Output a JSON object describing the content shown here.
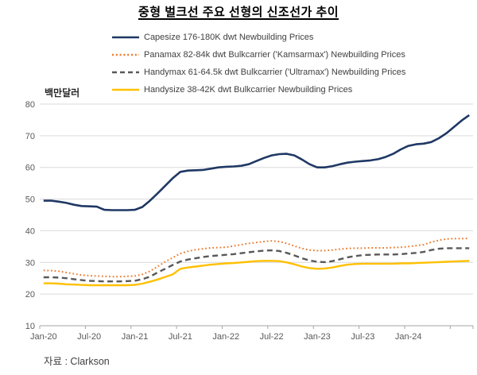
{
  "title": "중형 벌크선 주요 선형의 신조선가 추이",
  "axis_unit_label": "백만달러",
  "source_label": "자료 : Clarkson",
  "colors": {
    "capesize_navy": "#1F3864",
    "panamax_orange": "#ED7D31",
    "handymax_gray": "#595959",
    "handysize_yellow": "#FFC000",
    "gridline": "#D9D9D9",
    "axis_line": "#A6A6A6",
    "tick_label": "#595959",
    "legend_text": "#404040",
    "title_text": "#000000"
  },
  "chart_data": {
    "type": "line",
    "title": "중형 벌크선 주요 선형의 신조선가 추이",
    "xlabel": "",
    "ylabel": "백만달러",
    "ylim": [
      10,
      80
    ],
    "y_ticks": [
      10,
      20,
      30,
      40,
      50,
      60,
      70,
      80
    ],
    "grid": true,
    "legend_position": "top-left",
    "x_unit": "month",
    "x_start": "Jan-20",
    "x_end": "Sep-24",
    "n_points": 57,
    "x_tick_labels": [
      "Jan-20",
      "Jul-20",
      "Jan-21",
      "Jul-21",
      "Jan-22",
      "Jul-22",
      "Jan-23",
      "Jul-23",
      "Jan-24"
    ],
    "x_tick_month_indices": [
      0,
      6,
      12,
      18,
      24,
      30,
      36,
      42,
      48
    ],
    "series": [
      {
        "id": "capesize",
        "name": "Capesize 176-180K dwt Newbuilding Prices",
        "color": "#1F3864",
        "style": "solid",
        "line_width": 2.6,
        "values": [
          49.5,
          49.5,
          49.2,
          48.8,
          48.2,
          47.8,
          47.7,
          47.6,
          46.6,
          46.5,
          46.5,
          46.5,
          46.6,
          47.5,
          49.5,
          51.8,
          54.2,
          56.6,
          58.6,
          59.0,
          59.1,
          59.2,
          59.6,
          60.0,
          60.2,
          60.3,
          60.5,
          61.0,
          62.0,
          63.0,
          63.8,
          64.2,
          64.3,
          63.8,
          62.5,
          61.0,
          60.0,
          60.0,
          60.4,
          61.0,
          61.5,
          61.8,
          62.0,
          62.2,
          62.6,
          63.3,
          64.3,
          65.7,
          66.8,
          67.3,
          67.5,
          68.0,
          69.2,
          70.8,
          72.8,
          74.8,
          76.5
        ]
      },
      {
        "id": "panamax",
        "name": "Panamax 82-84k dwt Bulkcarrier ('Kamsarmax') Newbuilding Prices",
        "color": "#ED7D31",
        "style": "dotted",
        "line_width": 2.0,
        "values": [
          27.5,
          27.4,
          27.2,
          26.8,
          26.4,
          26.0,
          25.8,
          25.7,
          25.6,
          25.5,
          25.5,
          25.6,
          25.7,
          26.2,
          27.2,
          28.7,
          30.2,
          31.5,
          32.8,
          33.5,
          34.0,
          34.3,
          34.6,
          34.7,
          34.8,
          35.2,
          35.6,
          36.0,
          36.3,
          36.6,
          36.8,
          36.6,
          36.0,
          35.2,
          34.4,
          33.9,
          33.7,
          33.7,
          33.9,
          34.2,
          34.4,
          34.5,
          34.5,
          34.6,
          34.6,
          34.6,
          34.7,
          34.8,
          35.0,
          35.3,
          35.6,
          36.4,
          37.0,
          37.4,
          37.5,
          37.5,
          37.6
        ]
      },
      {
        "id": "handymax",
        "name": "Handymax 61-64.5k dwt Bulkcarrier ('Ultramax') Newbuilding Prices",
        "color": "#595959",
        "style": "dashed",
        "line_width": 2.4,
        "values": [
          25.3,
          25.3,
          25.2,
          25.0,
          24.7,
          24.4,
          24.2,
          24.1,
          24.0,
          24.0,
          24.0,
          24.1,
          24.2,
          24.7,
          25.5,
          26.8,
          28.0,
          29.2,
          30.3,
          30.9,
          31.3,
          31.7,
          32.0,
          32.2,
          32.4,
          32.6,
          32.9,
          33.2,
          33.5,
          33.7,
          33.8,
          33.6,
          33.0,
          32.2,
          31.3,
          30.6,
          30.2,
          30.1,
          30.4,
          31.0,
          31.6,
          32.0,
          32.3,
          32.4,
          32.5,
          32.5,
          32.5,
          32.6,
          32.8,
          33.0,
          33.3,
          33.9,
          34.3,
          34.5,
          34.5,
          34.5,
          34.5
        ]
      },
      {
        "id": "handysize",
        "name": "Handysize 38-42K dwt Bulkcarrier Newbuilding Prices",
        "color": "#FFC000",
        "style": "solid",
        "line_width": 2.4,
        "values": [
          23.4,
          23.4,
          23.3,
          23.1,
          23.0,
          22.9,
          22.8,
          22.8,
          22.8,
          22.8,
          22.8,
          22.8,
          22.9,
          23.3,
          23.9,
          24.6,
          25.4,
          26.2,
          28.0,
          28.4,
          28.7,
          29.0,
          29.3,
          29.5,
          29.7,
          29.8,
          30.0,
          30.2,
          30.4,
          30.5,
          30.5,
          30.4,
          30.0,
          29.4,
          28.7,
          28.2,
          28.0,
          28.1,
          28.4,
          28.9,
          29.3,
          29.5,
          29.6,
          29.6,
          29.6,
          29.6,
          29.6,
          29.7,
          29.7,
          29.8,
          29.9,
          30.0,
          30.1,
          30.2,
          30.3,
          30.4,
          30.5
        ]
      }
    ]
  }
}
